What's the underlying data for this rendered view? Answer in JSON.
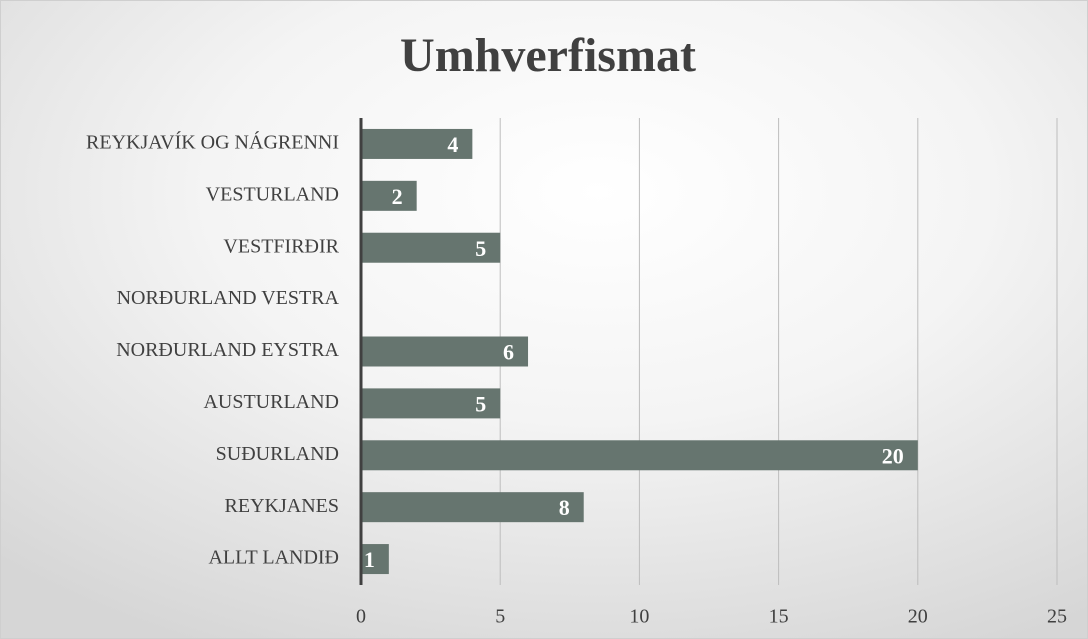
{
  "chart_data": {
    "type": "bar",
    "orientation": "horizontal",
    "title": "Umhverfismat",
    "categories": [
      "REYKJAVÍK OG NÁGRENNI",
      "VESTURLAND",
      "VESTFIRÐIR",
      "NORÐURLAND VESTRA",
      "NORÐURLAND EYSTRA",
      "AUSTURLAND",
      "SUÐURLAND",
      "REYKJANES",
      "ALLT LANDIÐ"
    ],
    "values": [
      4,
      2,
      5,
      null,
      6,
      5,
      20,
      8,
      1
    ],
    "color": "#66756f",
    "xlim": [
      0,
      25
    ],
    "xticks": [
      0,
      5,
      10,
      15,
      20,
      25
    ],
    "grid": true
  }
}
